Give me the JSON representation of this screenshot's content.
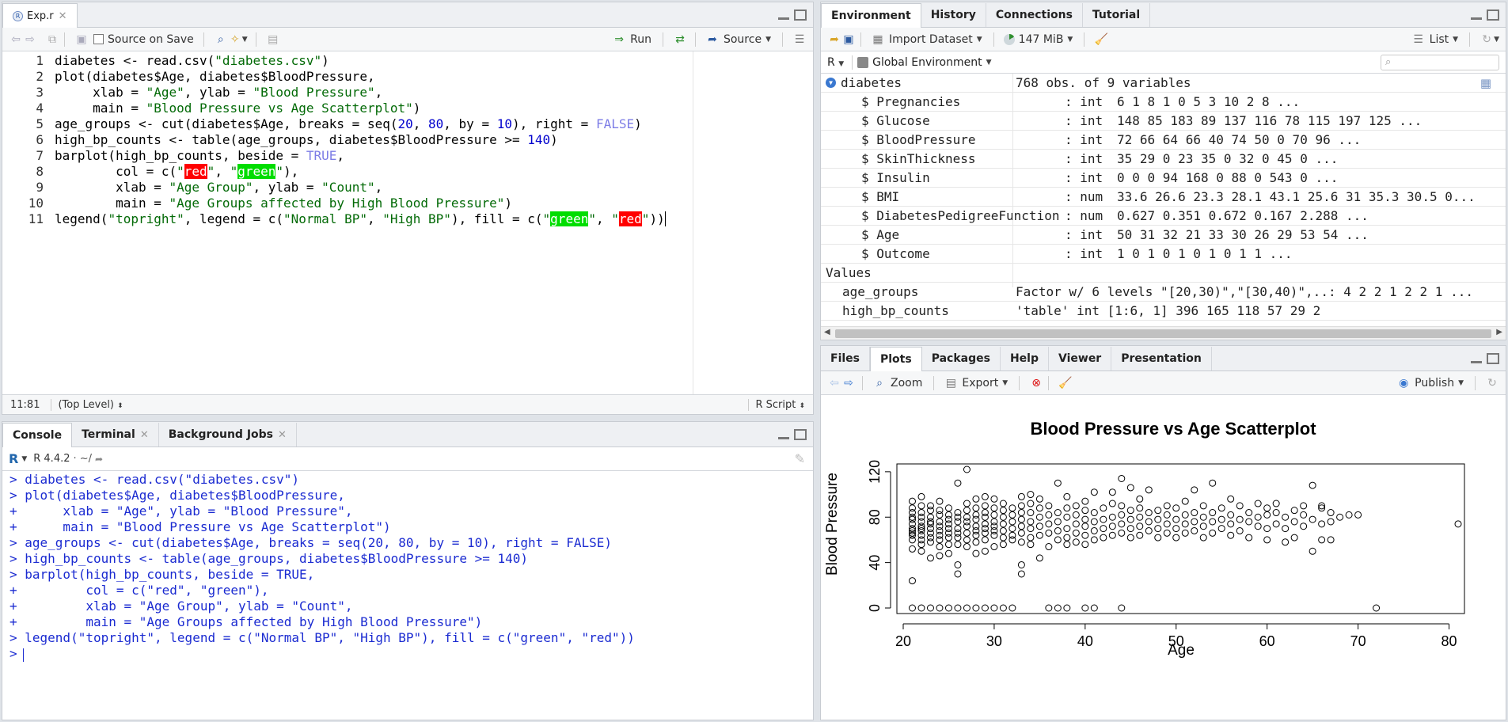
{
  "editor": {
    "tab_label": "Exp.r",
    "source_on_save": "Source on Save",
    "run_label": "Run",
    "source_label": "Source",
    "lines": [
      "1",
      "2",
      "3",
      "4",
      "5",
      "6",
      "7",
      "8",
      "9",
      "10",
      "11"
    ],
    "cursor_pos": "11:81",
    "scope": "(Top Level)",
    "file_type": "R Script"
  },
  "code": {
    "l1a": "diabetes <- read.csv(",
    "l1s": "\"diabetes.csv\"",
    "l1b": ")",
    "l2": "plot(diabetes$Age, diabetes$BloodPressure,",
    "l3a": "     xlab = ",
    "l3s1": "\"Age\"",
    "l3b": ", ylab = ",
    "l3s2": "\"Blood Pressure\"",
    "l3c": ",",
    "l4a": "     main = ",
    "l4s": "\"Blood Pressure vs Age Scatterplot\"",
    "l4b": ")",
    "l5a": "age_groups <- cut(diabetes$Age, breaks = seq(",
    "l5n1": "20",
    "l5b": ", ",
    "l5n2": "80",
    "l5c": ", by = ",
    "l5n3": "10",
    "l5d": "), right = ",
    "l5k": "FALSE",
    "l5e": ")",
    "l6a": "high_bp_counts <- table(age_groups, diabetes$BloodPressure >= ",
    "l6n": "140",
    "l6b": ")",
    "l7a": "barplot(high_bp_counts, beside = ",
    "l7k": "TRUE",
    "l7b": ",",
    "l8a": "        col = c(",
    "l8s1a": "\"",
    "l8h1": "red",
    "l8s1b": "\"",
    "l8b": ", ",
    "l8s2a": "\"",
    "l8h2": "green",
    "l8s2b": "\"",
    "l8c": "),",
    "l9a": "        xlab = ",
    "l9s1": "\"Age Group\"",
    "l9b": ", ylab = ",
    "l9s2": "\"Count\"",
    "l9c": ",",
    "l10a": "        main = ",
    "l10s": "\"Age Groups affected by High Blood Pressure\"",
    "l10b": ")",
    "l11a": "legend(",
    "l11s1": "\"topright\"",
    "l11b": ", legend = c(",
    "l11s2": "\"Normal BP\"",
    "l11c": ", ",
    "l11s3": "\"High BP\"",
    "l11d": "), fill = c(",
    "l11s4a": "\"",
    "l11h1": "green",
    "l11s4b": "\"",
    "l11e": ", ",
    "l11s5a": "\"",
    "l11h2": "red",
    "l11s5b": "\"",
    "l11f": "))"
  },
  "console": {
    "tabs": [
      "Console",
      "Terminal",
      "Background Jobs"
    ],
    "version": "R 4.4.2",
    "path": "· ~/",
    "lines": [
      "> diabetes <- read.csv(\"diabetes.csv\")",
      "> plot(diabetes$Age, diabetes$BloodPressure,",
      "+      xlab = \"Age\", ylab = \"Blood Pressure\",",
      "+      main = \"Blood Pressure vs Age Scatterplot\")",
      "> age_groups <- cut(diabetes$Age, breaks = seq(20, 80, by = 10), right = FALSE)",
      "> high_bp_counts <- table(age_groups, diabetes$BloodPressure >= 140)",
      "> barplot(high_bp_counts, beside = TRUE,",
      "+         col = c(\"red\", \"green\"),",
      "+         xlab = \"Age Group\", ylab = \"Count\",",
      "+         main = \"Age Groups affected by High Blood Pressure\")",
      "> legend(\"topright\", legend = c(\"Normal BP\", \"High BP\"), fill = c(\"green\", \"red\"))",
      "> "
    ]
  },
  "env": {
    "tabs": [
      "Environment",
      "History",
      "Connections",
      "Tutorial"
    ],
    "import_dataset": "Import Dataset",
    "memory": "147 MiB",
    "list_view": "List",
    "lang": "R",
    "scope": "Global Environment",
    "dataset": {
      "name": "diabetes",
      "summary": "768 obs. of 9 variables"
    },
    "vars": [
      {
        "name": "$ Pregnancies",
        "type": ": int",
        "values": "6 1 8 1 0 5 3 10 2 8 ..."
      },
      {
        "name": "$ Glucose",
        "type": ": int",
        "values": "148 85 183 89 137 116 78 115 197 125 ..."
      },
      {
        "name": "$ BloodPressure",
        "type": ": int",
        "values": "72 66 64 66 40 74 50 0 70 96 ..."
      },
      {
        "name": "$ SkinThickness",
        "type": ": int",
        "values": "35 29 0 23 35 0 32 0 45 0 ..."
      },
      {
        "name": "$ Insulin",
        "type": ": int",
        "values": "0 0 0 94 168 0 88 0 543 0 ..."
      },
      {
        "name": "$ BMI",
        "type": ": num",
        "values": "33.6 26.6 23.3 28.1 43.1 25.6 31 35.3 30.5 0..."
      },
      {
        "name": "$ DiabetesPedigreeFunction",
        "type": ": num",
        "values": "0.627 0.351 0.672 0.167 2.288 ..."
      },
      {
        "name": "$ Age",
        "type": ": int",
        "values": "50 31 32 21 33 30 26 29 53 54 ..."
      },
      {
        "name": "$ Outcome",
        "type": ": int",
        "values": "1 0 1 0 1 0 1 0 1 1 ..."
      }
    ],
    "values_header": "Values",
    "values": [
      {
        "name": "age_groups",
        "value": "Factor w/ 6 levels \"[20,30)\",\"[30,40)\",..: 4 2 2 1 2 2 1 ..."
      },
      {
        "name": "high_bp_counts",
        "value": "'table' int [1:6, 1] 396 165 118 57 29 2"
      }
    ]
  },
  "plots_pane": {
    "tabs": [
      "Files",
      "Plots",
      "Packages",
      "Help",
      "Viewer",
      "Presentation"
    ],
    "zoom": "Zoom",
    "export": "Export",
    "publish": "Publish"
  },
  "chart_data": {
    "type": "scatter",
    "title": "Blood Pressure vs Age Scatterplot",
    "xlabel": "Age",
    "ylabel": "Blood Pressure",
    "xlim": [
      20,
      81
    ],
    "ylim": [
      0,
      122
    ],
    "xticks": [
      20,
      30,
      40,
      50,
      60,
      70,
      80
    ],
    "yticks": [
      0,
      40,
      80,
      120
    ],
    "points": [
      [
        21,
        0
      ],
      [
        22,
        0
      ],
      [
        23,
        0
      ],
      [
        24,
        0
      ],
      [
        25,
        0
      ],
      [
        26,
        0
      ],
      [
        27,
        0
      ],
      [
        28,
        0
      ],
      [
        29,
        0
      ],
      [
        30,
        0
      ],
      [
        31,
        0
      ],
      [
        32,
        0
      ],
      [
        36,
        0
      ],
      [
        37,
        0
      ],
      [
        38,
        0
      ],
      [
        40,
        0
      ],
      [
        41,
        0
      ],
      [
        44,
        0
      ],
      [
        72,
        0
      ],
      [
        21,
        24
      ],
      [
        21,
        52
      ],
      [
        21,
        60
      ],
      [
        21,
        64
      ],
      [
        21,
        66
      ],
      [
        21,
        68
      ],
      [
        21,
        70
      ],
      [
        21,
        74
      ],
      [
        21,
        78
      ],
      [
        21,
        80
      ],
      [
        21,
        84
      ],
      [
        21,
        88
      ],
      [
        21,
        94
      ],
      [
        22,
        50
      ],
      [
        22,
        56
      ],
      [
        22,
        60
      ],
      [
        22,
        64
      ],
      [
        22,
        68
      ],
      [
        22,
        70
      ],
      [
        22,
        72
      ],
      [
        22,
        76
      ],
      [
        22,
        80
      ],
      [
        22,
        84
      ],
      [
        22,
        90
      ],
      [
        22,
        98
      ],
      [
        23,
        44
      ],
      [
        23,
        58
      ],
      [
        23,
        62
      ],
      [
        23,
        66
      ],
      [
        23,
        70
      ],
      [
        23,
        74
      ],
      [
        23,
        76
      ],
      [
        23,
        80
      ],
      [
        23,
        86
      ],
      [
        23,
        90
      ],
      [
        24,
        46
      ],
      [
        24,
        54
      ],
      [
        24,
        60
      ],
      [
        24,
        64
      ],
      [
        24,
        68
      ],
      [
        24,
        72
      ],
      [
        24,
        76
      ],
      [
        24,
        82
      ],
      [
        24,
        86
      ],
      [
        24,
        94
      ],
      [
        25,
        48
      ],
      [
        25,
        56
      ],
      [
        25,
        62
      ],
      [
        25,
        66
      ],
      [
        25,
        70
      ],
      [
        25,
        74
      ],
      [
        25,
        78
      ],
      [
        25,
        82
      ],
      [
        25,
        88
      ],
      [
        26,
        30
      ],
      [
        26,
        38
      ],
      [
        26,
        56
      ],
      [
        26,
        62
      ],
      [
        26,
        66
      ],
      [
        26,
        70
      ],
      [
        26,
        76
      ],
      [
        26,
        80
      ],
      [
        26,
        84
      ],
      [
        26,
        110
      ],
      [
        27,
        54
      ],
      [
        27,
        60
      ],
      [
        27,
        66
      ],
      [
        27,
        72
      ],
      [
        27,
        76
      ],
      [
        27,
        80
      ],
      [
        27,
        86
      ],
      [
        27,
        92
      ],
      [
        27,
        122
      ],
      [
        28,
        48
      ],
      [
        28,
        58
      ],
      [
        28,
        64
      ],
      [
        28,
        68
      ],
      [
        28,
        72
      ],
      [
        28,
        78
      ],
      [
        28,
        82
      ],
      [
        28,
        88
      ],
      [
        28,
        96
      ],
      [
        29,
        50
      ],
      [
        29,
        60
      ],
      [
        29,
        66
      ],
      [
        29,
        70
      ],
      [
        29,
        74
      ],
      [
        29,
        80
      ],
      [
        29,
        84
      ],
      [
        29,
        90
      ],
      [
        29,
        98
      ],
      [
        30,
        54
      ],
      [
        30,
        64
      ],
      [
        30,
        68
      ],
      [
        30,
        72
      ],
      [
        30,
        76
      ],
      [
        30,
        82
      ],
      [
        30,
        88
      ],
      [
        30,
        96
      ],
      [
        31,
        56
      ],
      [
        31,
        62
      ],
      [
        31,
        68
      ],
      [
        31,
        74
      ],
      [
        31,
        80
      ],
      [
        31,
        86
      ],
      [
        31,
        92
      ],
      [
        32,
        60
      ],
      [
        32,
        64
      ],
      [
        32,
        70
      ],
      [
        32,
        76
      ],
      [
        32,
        82
      ],
      [
        32,
        88
      ],
      [
        33,
        30
      ],
      [
        33,
        38
      ],
      [
        33,
        58
      ],
      [
        33,
        66
      ],
      [
        33,
        72
      ],
      [
        33,
        78
      ],
      [
        33,
        84
      ],
      [
        33,
        90
      ],
      [
        33,
        98
      ],
      [
        34,
        56
      ],
      [
        34,
        62
      ],
      [
        34,
        70
      ],
      [
        34,
        76
      ],
      [
        34,
        84
      ],
      [
        34,
        92
      ],
      [
        34,
        100
      ],
      [
        35,
        44
      ],
      [
        35,
        64
      ],
      [
        35,
        72
      ],
      [
        35,
        80
      ],
      [
        35,
        88
      ],
      [
        35,
        96
      ],
      [
        36,
        54
      ],
      [
        36,
        66
      ],
      [
        36,
        74
      ],
      [
        36,
        82
      ],
      [
        36,
        90
      ],
      [
        37,
        60
      ],
      [
        37,
        68
      ],
      [
        37,
        76
      ],
      [
        37,
        84
      ],
      [
        37,
        110
      ],
      [
        38,
        56
      ],
      [
        38,
        62
      ],
      [
        38,
        70
      ],
      [
        38,
        80
      ],
      [
        38,
        88
      ],
      [
        38,
        98
      ],
      [
        39,
        58
      ],
      [
        39,
        66
      ],
      [
        39,
        74
      ],
      [
        39,
        82
      ],
      [
        39,
        90
      ],
      [
        40,
        56
      ],
      [
        40,
        64
      ],
      [
        40,
        72
      ],
      [
        40,
        78
      ],
      [
        40,
        86
      ],
      [
        40,
        94
      ],
      [
        41,
        60
      ],
      [
        41,
        68
      ],
      [
        41,
        76
      ],
      [
        41,
        84
      ],
      [
        41,
        102
      ],
      [
        42,
        62
      ],
      [
        42,
        70
      ],
      [
        42,
        78
      ],
      [
        42,
        88
      ],
      [
        43,
        64
      ],
      [
        43,
        72
      ],
      [
        43,
        80
      ],
      [
        43,
        92
      ],
      [
        43,
        102
      ],
      [
        44,
        66
      ],
      [
        44,
        74
      ],
      [
        44,
        82
      ],
      [
        44,
        90
      ],
      [
        44,
        114
      ],
      [
        45,
        62
      ],
      [
        45,
        70
      ],
      [
        45,
        78
      ],
      [
        45,
        86
      ],
      [
        45,
        106
      ],
      [
        46,
        64
      ],
      [
        46,
        72
      ],
      [
        46,
        80
      ],
      [
        46,
        88
      ],
      [
        46,
        96
      ],
      [
        47,
        68
      ],
      [
        47,
        76
      ],
      [
        47,
        84
      ],
      [
        47,
        104
      ],
      [
        48,
        62
      ],
      [
        48,
        70
      ],
      [
        48,
        78
      ],
      [
        48,
        86
      ],
      [
        49,
        66
      ],
      [
        49,
        74
      ],
      [
        49,
        82
      ],
      [
        49,
        90
      ],
      [
        50,
        62
      ],
      [
        50,
        70
      ],
      [
        50,
        78
      ],
      [
        50,
        88
      ],
      [
        51,
        66
      ],
      [
        51,
        74
      ],
      [
        51,
        82
      ],
      [
        51,
        94
      ],
      [
        52,
        68
      ],
      [
        52,
        76
      ],
      [
        52,
        84
      ],
      [
        52,
        104
      ],
      [
        53,
        62
      ],
      [
        53,
        72
      ],
      [
        53,
        80
      ],
      [
        53,
        90
      ],
      [
        54,
        66
      ],
      [
        54,
        76
      ],
      [
        54,
        84
      ],
      [
        54,
        110
      ],
      [
        55,
        70
      ],
      [
        55,
        78
      ],
      [
        55,
        88
      ],
      [
        56,
        64
      ],
      [
        56,
        74
      ],
      [
        56,
        82
      ],
      [
        56,
        96
      ],
      [
        57,
        68
      ],
      [
        57,
        78
      ],
      [
        57,
        90
      ],
      [
        58,
        62
      ],
      [
        58,
        76
      ],
      [
        58,
        84
      ],
      [
        59,
        72
      ],
      [
        59,
        80
      ],
      [
        59,
        92
      ],
      [
        60,
        60
      ],
      [
        60,
        70
      ],
      [
        60,
        82
      ],
      [
        60,
        88
      ],
      [
        61,
        74
      ],
      [
        61,
        84
      ],
      [
        61,
        92
      ],
      [
        62,
        58
      ],
      [
        62,
        70
      ],
      [
        62,
        80
      ],
      [
        63,
        62
      ],
      [
        63,
        76
      ],
      [
        63,
        86
      ],
      [
        64,
        72
      ],
      [
        64,
        82
      ],
      [
        64,
        90
      ],
      [
        65,
        50
      ],
      [
        65,
        78
      ],
      [
        65,
        108
      ],
      [
        66,
        60
      ],
      [
        66,
        74
      ],
      [
        66,
        88
      ],
      [
        66,
        90
      ],
      [
        67,
        60
      ],
      [
        67,
        76
      ],
      [
        67,
        84
      ],
      [
        68,
        80
      ],
      [
        69,
        82
      ],
      [
        70,
        82
      ],
      [
        81,
        74
      ]
    ]
  },
  "colors": {
    "accent": "#1b2bd1",
    "string": "#036A07",
    "number": "#0000CD",
    "highlight_red": "#ff0000",
    "highlight_green": "#00dd00"
  }
}
